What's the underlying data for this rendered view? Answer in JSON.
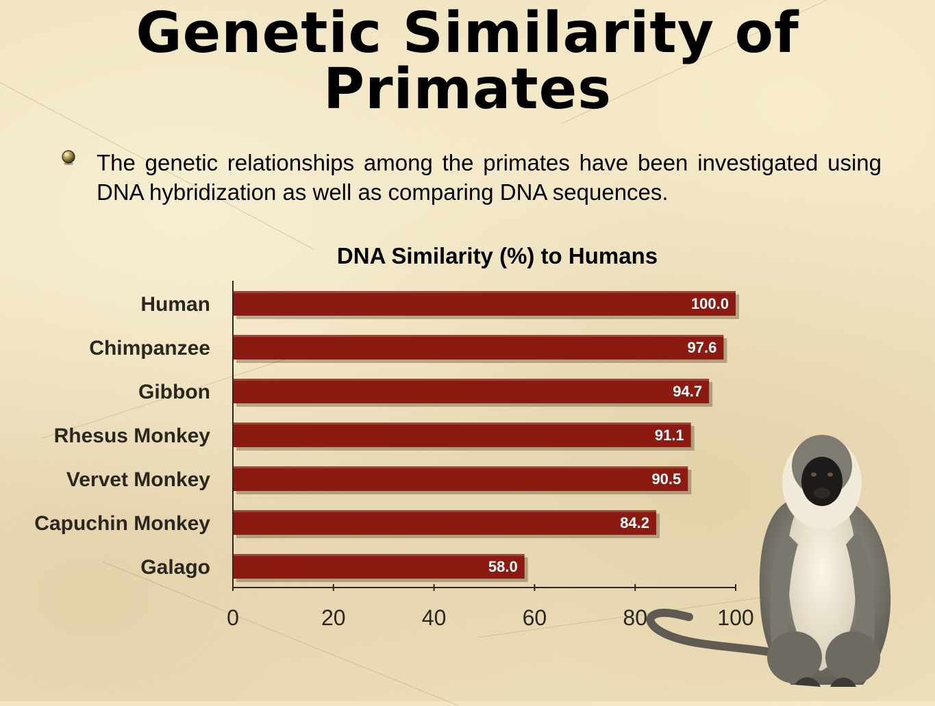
{
  "slide": {
    "title": "Genetic Similarity of Primates",
    "bullet": "The genetic relationships among the primates have been investigated using DNA hybridization as well as comparing DNA sequences."
  },
  "colors": {
    "bar": "#8b1a10",
    "bar_label": "#ffffff",
    "text": "#000000"
  },
  "illustration": {
    "subject": "vervet-monkey"
  },
  "chart_data": {
    "type": "bar",
    "orientation": "horizontal",
    "title": "DNA Similarity (%) to Humans",
    "xlabel": "",
    "ylabel": "",
    "categories": [
      "Human",
      "Chimpanzee",
      "Gibbon",
      "Rhesus Monkey",
      "Vervet Monkey",
      "Capuchin Monkey",
      "Galago"
    ],
    "values": [
      100.0,
      97.6,
      94.7,
      91.1,
      90.5,
      84.2,
      58.0
    ],
    "value_labels": [
      "100.0",
      "97.6",
      "94.7",
      "91.1",
      "90.5",
      "84.2",
      "58.0"
    ],
    "xlim": [
      0,
      100
    ],
    "xticks": [
      0,
      20,
      40,
      60,
      80,
      100
    ],
    "grid": false,
    "legend": "none"
  }
}
